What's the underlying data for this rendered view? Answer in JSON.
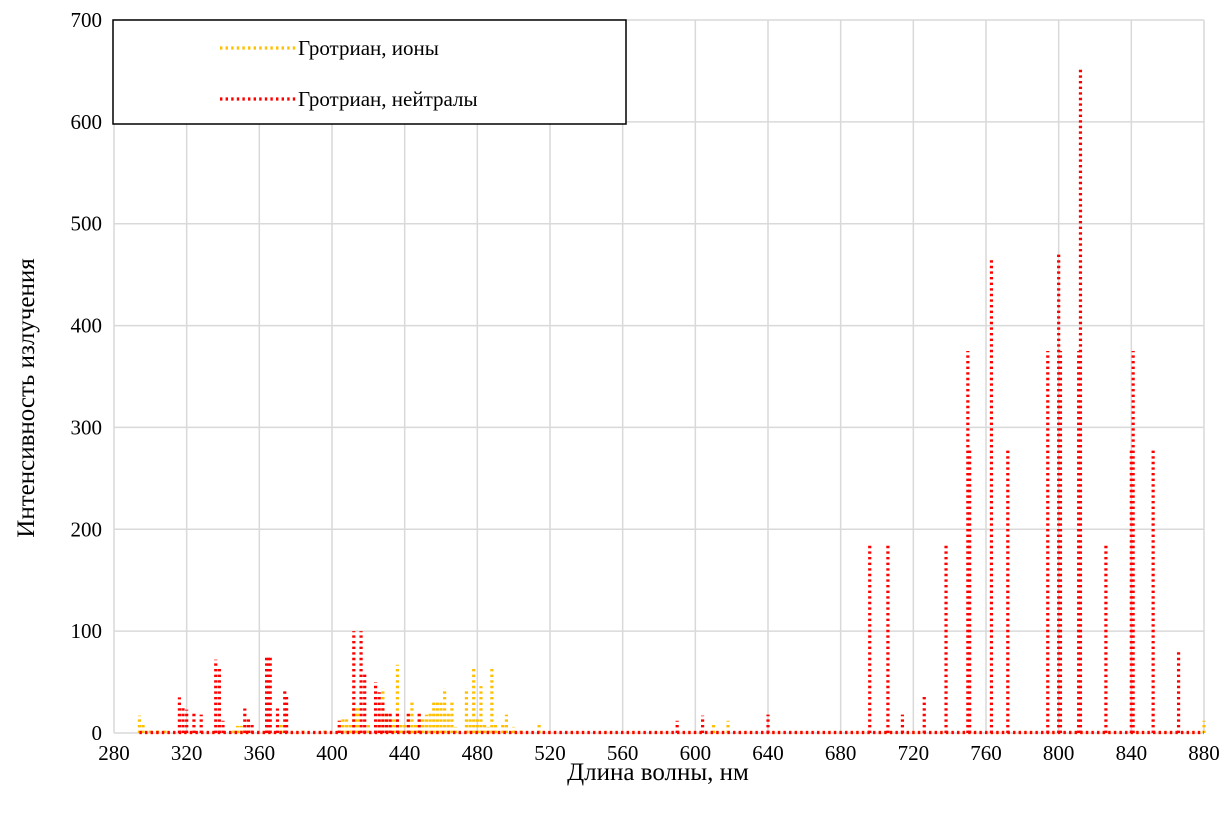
{
  "chart_data": {
    "type": "line",
    "title": "",
    "xlabel": "Длина волны, нм",
    "ylabel": "Интенсивность излучения",
    "xlim": [
      280,
      880
    ],
    "ylim": [
      0,
      700
    ],
    "xticks": [
      280,
      320,
      360,
      400,
      440,
      480,
      520,
      560,
      600,
      640,
      680,
      720,
      760,
      800,
      840,
      880
    ],
    "yticks": [
      0,
      100,
      200,
      300,
      400,
      500,
      600,
      700
    ],
    "grid": true,
    "legend": "top-left",
    "series": [
      {
        "name": "Гротриан, ионы",
        "color": "#ffc000",
        "style": "dotted",
        "lines": [
          [
            294,
            17
          ],
          [
            296,
            10
          ],
          [
            300,
            4
          ],
          [
            304,
            3
          ],
          [
            308,
            5
          ],
          [
            346,
            5
          ],
          [
            348,
            7
          ],
          [
            350,
            7
          ],
          [
            352,
            5
          ],
          [
            354,
            4
          ],
          [
            364,
            4
          ],
          [
            372,
            8
          ],
          [
            384,
            3
          ],
          [
            396,
            4
          ],
          [
            404,
            12
          ],
          [
            406,
            15
          ],
          [
            408,
            14
          ],
          [
            410,
            9
          ],
          [
            412,
            24
          ],
          [
            414,
            26
          ],
          [
            420,
            10
          ],
          [
            426,
            12
          ],
          [
            428,
            44
          ],
          [
            430,
            20
          ],
          [
            432,
            18
          ],
          [
            434,
            14
          ],
          [
            436,
            67
          ],
          [
            438,
            8
          ],
          [
            440,
            10
          ],
          [
            442,
            18
          ],
          [
            444,
            33
          ],
          [
            446,
            10
          ],
          [
            448,
            18
          ],
          [
            450,
            14
          ],
          [
            452,
            18
          ],
          [
            454,
            22
          ],
          [
            456,
            32
          ],
          [
            458,
            33
          ],
          [
            460,
            30
          ],
          [
            462,
            44
          ],
          [
            464,
            20
          ],
          [
            466,
            30
          ],
          [
            468,
            6
          ],
          [
            474,
            44
          ],
          [
            476,
            15
          ],
          [
            478,
            64
          ],
          [
            480,
            15
          ],
          [
            482,
            46
          ],
          [
            484,
            8
          ],
          [
            486,
            6
          ],
          [
            488,
            65
          ],
          [
            490,
            10
          ],
          [
            494,
            8
          ],
          [
            496,
            18
          ],
          [
            500,
            6
          ],
          [
            504,
            5
          ],
          [
            514,
            9
          ],
          [
            610,
            10
          ],
          [
            618,
            12
          ],
          [
            880,
            12
          ]
        ]
      },
      {
        "name": "Гротриан, нейтралы",
        "color": "#ff0000",
        "style": "dotted",
        "lines": [
          [
            316,
            35
          ],
          [
            318,
            26
          ],
          [
            320,
            23
          ],
          [
            324,
            22
          ],
          [
            328,
            18
          ],
          [
            336,
            72
          ],
          [
            338,
            65
          ],
          [
            340,
            12
          ],
          [
            352,
            24
          ],
          [
            354,
            16
          ],
          [
            356,
            10
          ],
          [
            364,
            74
          ],
          [
            365,
            74
          ],
          [
            366,
            74
          ],
          [
            370,
            24
          ],
          [
            374,
            42
          ],
          [
            375,
            36
          ],
          [
            404,
            12
          ],
          [
            412,
            100
          ],
          [
            416,
            100
          ],
          [
            418,
            60
          ],
          [
            424,
            50
          ],
          [
            426,
            40
          ],
          [
            428,
            30
          ],
          [
            430,
            22
          ],
          [
            432,
            20
          ],
          [
            436,
            20
          ],
          [
            442,
            22
          ],
          [
            448,
            22
          ],
          [
            590,
            12
          ],
          [
            604,
            17
          ],
          [
            640,
            18
          ],
          [
            696,
            185
          ],
          [
            706,
            185
          ],
          [
            714,
            18
          ],
          [
            726,
            37
          ],
          [
            738,
            185
          ],
          [
            750,
            375
          ],
          [
            751,
            280
          ],
          [
            763,
            466
          ],
          [
            772,
            280
          ],
          [
            794,
            375
          ],
          [
            800,
            470
          ],
          [
            801,
            375
          ],
          [
            811,
            375
          ],
          [
            812,
            653
          ],
          [
            826,
            185
          ],
          [
            840,
            280
          ],
          [
            841,
            375
          ],
          [
            852,
            278
          ],
          [
            866,
            82
          ]
        ]
      }
    ]
  }
}
